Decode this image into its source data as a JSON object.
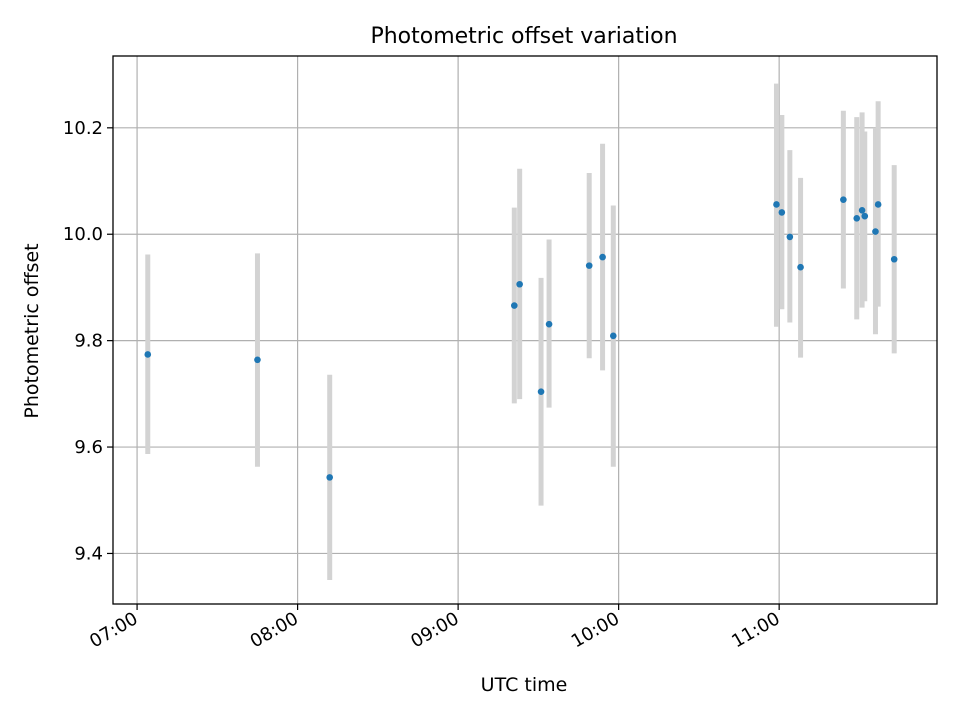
{
  "chart_data": {
    "type": "scatter",
    "title": "Photometric offset variation",
    "xlabel": "UTC time",
    "ylabel": "Photometric offset",
    "x_ticks": [
      "07:00",
      "08:00",
      "09:00",
      "10:00",
      "11:00"
    ],
    "y_ticks": [
      "9.4",
      "9.6",
      "9.8",
      "10.0",
      "10.2"
    ],
    "xlim": [
      "06:51",
      "11:59"
    ],
    "ylim": [
      9.305,
      10.335
    ],
    "grid": true,
    "colors": {
      "points": "#1f77b4",
      "errorbars": "#d3d3d3",
      "grid": "#b0b0b0"
    },
    "points": [
      {
        "x": "07:04",
        "y": 9.774,
        "yerr_low": 9.587,
        "yerr_high": 9.962
      },
      {
        "x": "07:45",
        "y": 9.764,
        "yerr_low": 9.563,
        "yerr_high": 9.964
      },
      {
        "x": "08:12",
        "y": 9.543,
        "yerr_low": 9.35,
        "yerr_high": 9.736
      },
      {
        "x": "09:21",
        "y": 9.866,
        "yerr_low": 9.682,
        "yerr_high": 10.05
      },
      {
        "x": "09:23",
        "y": 9.906,
        "yerr_low": 9.69,
        "yerr_high": 10.123
      },
      {
        "x": "09:31",
        "y": 9.704,
        "yerr_low": 9.49,
        "yerr_high": 9.918
      },
      {
        "x": "09:34",
        "y": 9.831,
        "yerr_low": 9.674,
        "yerr_high": 9.99
      },
      {
        "x": "09:49",
        "y": 9.941,
        "yerr_low": 9.767,
        "yerr_high": 10.115
      },
      {
        "x": "09:54",
        "y": 9.957,
        "yerr_low": 9.744,
        "yerr_high": 10.17
      },
      {
        "x": "09:58",
        "y": 9.809,
        "yerr_low": 9.563,
        "yerr_high": 10.054
      },
      {
        "x": "10:59",
        "y": 10.056,
        "yerr_low": 9.826,
        "yerr_high": 10.283
      },
      {
        "x": "11:01",
        "y": 10.041,
        "yerr_low": 9.859,
        "yerr_high": 10.224
      },
      {
        "x": "11:04",
        "y": 9.995,
        "yerr_low": 9.834,
        "yerr_high": 10.158
      },
      {
        "x": "11:08",
        "y": 9.938,
        "yerr_low": 9.768,
        "yerr_high": 10.106
      },
      {
        "x": "11:24",
        "y": 10.065,
        "yerr_low": 9.898,
        "yerr_high": 10.232
      },
      {
        "x": "11:29",
        "y": 10.03,
        "yerr_low": 9.84,
        "yerr_high": 10.22
      },
      {
        "x": "11:31",
        "y": 10.045,
        "yerr_low": 9.862,
        "yerr_high": 10.229
      },
      {
        "x": "11:32",
        "y": 10.034,
        "yerr_low": 9.874,
        "yerr_high": 10.193
      },
      {
        "x": "11:36",
        "y": 10.005,
        "yerr_low": 9.812,
        "yerr_high": 10.2
      },
      {
        "x": "11:37",
        "y": 10.056,
        "yerr_low": 9.864,
        "yerr_high": 10.25
      },
      {
        "x": "11:43",
        "y": 9.953,
        "yerr_low": 9.776,
        "yerr_high": 10.13
      }
    ]
  }
}
